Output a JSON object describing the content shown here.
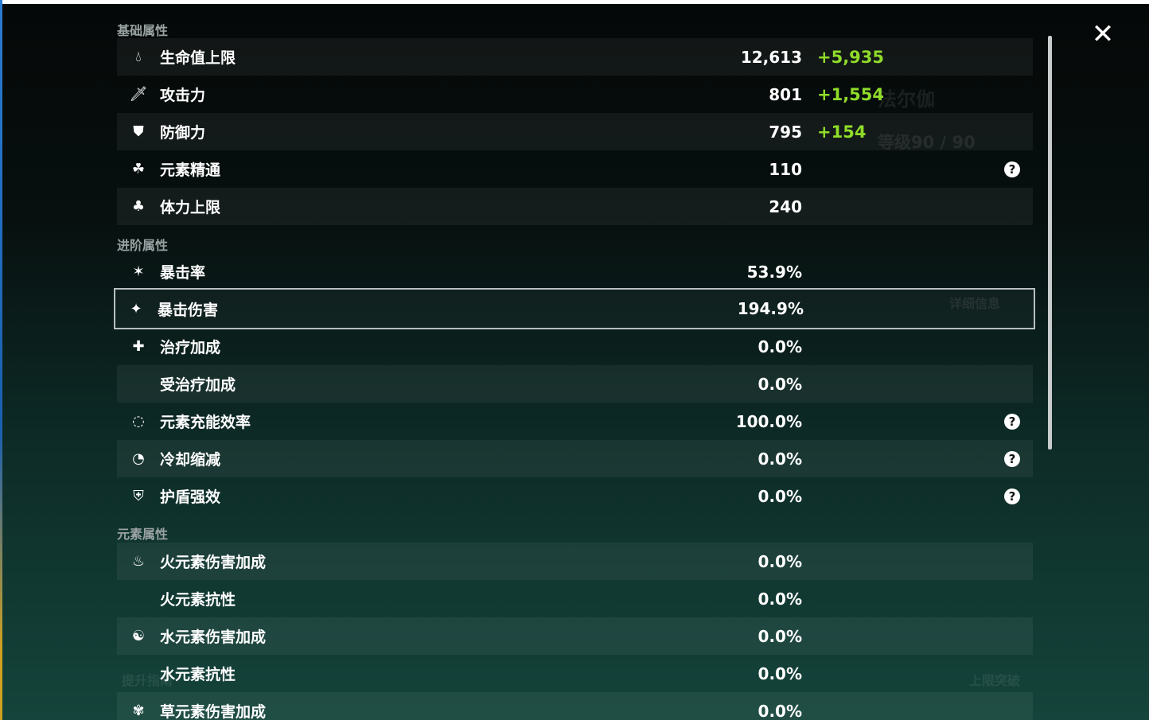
{
  "background": {
    "character_name": "法尔伽",
    "level": "等级90 / 90",
    "details_button": "详细信息",
    "ascend_button": "上限突破",
    "guide_button": "提升指南"
  },
  "sections": [
    {
      "title": "基础属性",
      "rows": [
        {
          "icon": "hp-drop-icon",
          "label": "生命值上限",
          "value": "12,613",
          "bonus": "+5,935"
        },
        {
          "icon": "sword-icon",
          "label": "攻击力",
          "value": "801",
          "bonus": "+1,554"
        },
        {
          "icon": "shield-icon",
          "label": "防御力",
          "value": "795",
          "bonus": "+154"
        },
        {
          "icon": "elemental-mastery-icon",
          "label": "元素精通",
          "value": "110",
          "help": true
        },
        {
          "icon": "stamina-icon",
          "label": "体力上限",
          "value": "240"
        }
      ]
    },
    {
      "title": "进阶属性",
      "rows": [
        {
          "icon": "crit-rate-icon",
          "label": "暴击率",
          "value": "53.9%"
        },
        {
          "icon": "crit-dmg-icon",
          "label": "暴击伤害",
          "value": "194.9%",
          "selected": true
        },
        {
          "icon": "healing-icon",
          "label": "治疗加成",
          "value": "0.0%"
        },
        {
          "icon": "",
          "label": "受治疗加成",
          "value": "0.0%"
        },
        {
          "icon": "energy-recharge-icon",
          "label": "元素充能效率",
          "value": "100.0%",
          "help": true
        },
        {
          "icon": "cooldown-icon",
          "label": "冷却缩减",
          "value": "0.0%",
          "help": true
        },
        {
          "icon": "shield-strength-icon",
          "label": "护盾强效",
          "value": "0.0%",
          "help": true
        }
      ]
    },
    {
      "title": "元素属性",
      "rows": [
        {
          "icon": "pyro-icon",
          "label": "火元素伤害加成",
          "value": "0.0%"
        },
        {
          "icon": "",
          "label": "火元素抗性",
          "value": "0.0%"
        },
        {
          "icon": "hydro-icon",
          "label": "水元素伤害加成",
          "value": "0.0%"
        },
        {
          "icon": "",
          "label": "水元素抗性",
          "value": "0.0%"
        },
        {
          "icon": "dendro-icon",
          "label": "草元素伤害加成",
          "value": "0.0%"
        }
      ]
    }
  ],
  "colors": {
    "bonus": "#8fdc2a",
    "selected_border": "#b8c0c0"
  }
}
